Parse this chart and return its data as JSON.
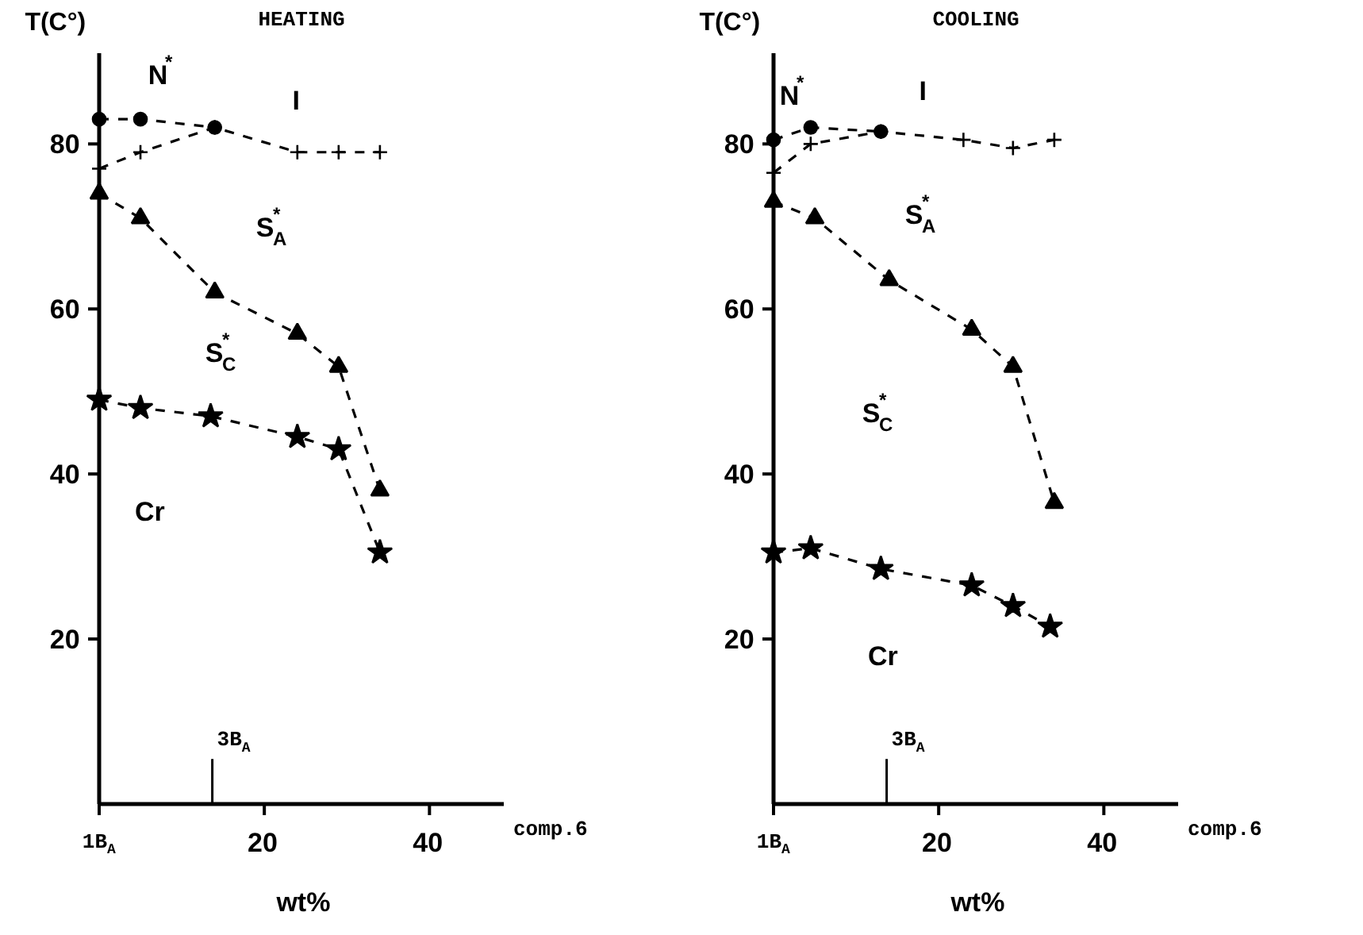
{
  "chart_data": [
    {
      "type": "line",
      "title": "HEATING",
      "xlabel": "wt%",
      "ylabel": "T(C°)",
      "line_style": "dashed",
      "xlim": [
        0,
        49
      ],
      "ylim": [
        0,
        91
      ],
      "xticks": [
        {
          "value": 0,
          "label": null
        },
        20,
        40
      ],
      "yticks": [
        20,
        40,
        60,
        80
      ],
      "series": [
        {
          "color": "#000000",
          "marker": "circle",
          "x": [
            0,
            5,
            14
          ],
          "values": [
            83,
            83,
            82
          ]
        },
        {
          "color": "#000000",
          "marker": "cross",
          "x": [
            0,
            5,
            14,
            24,
            29,
            34
          ],
          "values": [
            77,
            79,
            82,
            79,
            79,
            79
          ]
        },
        {
          "color": "#000000",
          "marker": "triangle",
          "x": [
            0,
            5,
            14,
            24,
            29,
            34
          ],
          "values": [
            74,
            71,
            62,
            57,
            53,
            38
          ]
        },
        {
          "color": "#000000",
          "marker": "star",
          "x": [
            0,
            5,
            13.5,
            24,
            29,
            34
          ],
          "values": [
            49,
            48,
            47,
            44.5,
            43,
            30.5
          ]
        }
      ],
      "ref_lines": [
        {
          "axis": "x",
          "value": 13.7,
          "label": "3B$_{A}$"
        }
      ],
      "annotations": [
        "N$^{*}$",
        "I",
        "S$^{*}$$_{A}$",
        "S$^{*}$$_{C}$",
        "Cr",
        "1B$_{A}$",
        "comp.6"
      ]
    },
    {
      "type": "line",
      "title": "COOLING",
      "xlabel": "wt%",
      "ylabel": "T(C°)",
      "line_style": "dashed",
      "xlim": [
        0,
        49
      ],
      "ylim": [
        0,
        91
      ],
      "xticks": [
        {
          "value": 0,
          "label": null
        },
        20,
        40
      ],
      "yticks": [
        20,
        40,
        60,
        80
      ],
      "series": [
        {
          "color": "#000000",
          "marker": "circle",
          "x": [
            0,
            4.5,
            13
          ],
          "values": [
            80.5,
            82,
            81.5
          ]
        },
        {
          "color": "#000000",
          "marker": "cross",
          "x": [
            0,
            4.5,
            13,
            23,
            29,
            34
          ],
          "values": [
            76.5,
            80,
            81.5,
            80.5,
            79.5,
            80.5
          ]
        },
        {
          "color": "#000000",
          "marker": "triangle",
          "x": [
            0,
            5,
            14,
            24,
            29,
            34
          ],
          "values": [
            73,
            71,
            63.5,
            57.5,
            53,
            36.5
          ]
        },
        {
          "color": "#000000",
          "marker": "star",
          "x": [
            0,
            4.5,
            13,
            24,
            29,
            33.5
          ],
          "values": [
            30.5,
            31,
            28.5,
            26.5,
            24,
            21.5
          ]
        }
      ],
      "ref_lines": [
        {
          "axis": "x",
          "value": 13.7,
          "label": "3B$_{A}$"
        }
      ],
      "annotations": [
        "N$^{*}$",
        "I",
        "S$^{*}$$_{A}$",
        "S$^{*}$$_{C}$",
        "Cr",
        "1B$_{A}$",
        "comp.6"
      ]
    }
  ]
}
